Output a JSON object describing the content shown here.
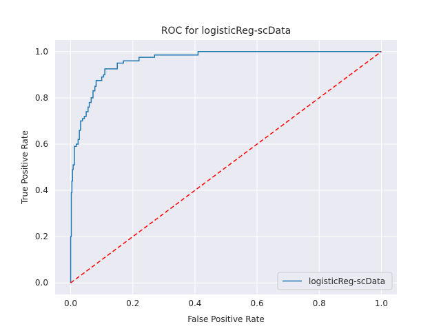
{
  "chart_data": {
    "type": "line",
    "title": "ROC for logisticReg-scData",
    "xlabel": "False Positive Rate",
    "ylabel": "True Positive Rate",
    "xlim": [
      -0.05,
      1.05
    ],
    "ylim": [
      -0.05,
      1.05
    ],
    "xticks": [
      0.0,
      0.2,
      0.4,
      0.6,
      0.8,
      1.0
    ],
    "yticks": [
      0.0,
      0.2,
      0.4,
      0.6,
      0.8,
      1.0
    ],
    "xtick_labels": [
      "0.0",
      "0.2",
      "0.4",
      "0.6",
      "0.8",
      "1.0"
    ],
    "ytick_labels": [
      "0.0",
      "0.2",
      "0.4",
      "0.6",
      "0.8",
      "1.0"
    ],
    "grid": true,
    "legend_position": "lower-right",
    "background_color": "#eaeaf2",
    "series": [
      {
        "name": "logisticReg-scData",
        "color": "#1f77b4",
        "style": "solid",
        "x": [
          0.0,
          0.0,
          0.002,
          0.002,
          0.004,
          0.004,
          0.006,
          0.006,
          0.008,
          0.008,
          0.012,
          0.012,
          0.018,
          0.018,
          0.024,
          0.024,
          0.028,
          0.028,
          0.032,
          0.032,
          0.038,
          0.038,
          0.044,
          0.044,
          0.05,
          0.05,
          0.056,
          0.056,
          0.06,
          0.06,
          0.066,
          0.066,
          0.072,
          0.072,
          0.078,
          0.078,
          0.082,
          0.082,
          0.1,
          0.1,
          0.106,
          0.106,
          0.11,
          0.11,
          0.15,
          0.15,
          0.17,
          0.17,
          0.22,
          0.22,
          0.27,
          0.27,
          0.41,
          0.41,
          1.0
        ],
        "y": [
          0.0,
          0.2,
          0.2,
          0.39,
          0.39,
          0.44,
          0.44,
          0.49,
          0.49,
          0.51,
          0.51,
          0.59,
          0.59,
          0.6,
          0.6,
          0.62,
          0.62,
          0.66,
          0.66,
          0.7,
          0.7,
          0.71,
          0.71,
          0.72,
          0.72,
          0.74,
          0.74,
          0.76,
          0.76,
          0.78,
          0.78,
          0.8,
          0.8,
          0.83,
          0.83,
          0.85,
          0.85,
          0.875,
          0.875,
          0.89,
          0.89,
          0.9,
          0.9,
          0.925,
          0.925,
          0.95,
          0.95,
          0.96,
          0.96,
          0.975,
          0.975,
          0.985,
          0.985,
          1.0,
          1.0
        ]
      },
      {
        "color": "#ff0000",
        "style": "dashed",
        "x": [
          0.0,
          1.0
        ],
        "y": [
          0.0,
          1.0
        ]
      }
    ]
  }
}
